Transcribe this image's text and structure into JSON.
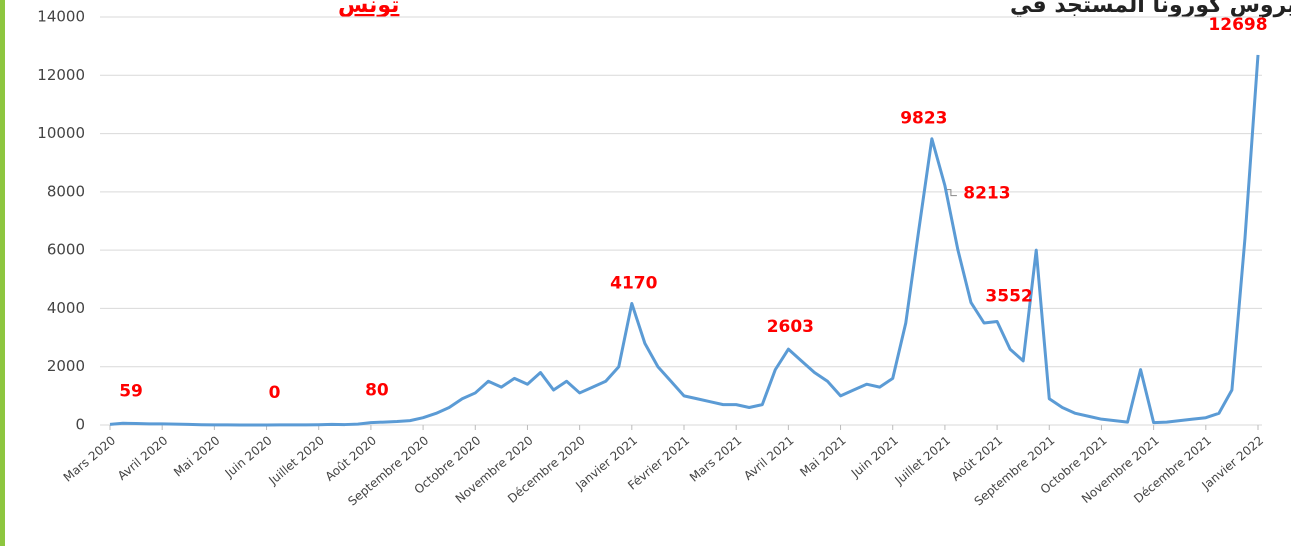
{
  "chart_data": {
    "type": "line",
    "title": "حالات الإصابة اليومية بفيروس كورونا المستجد في",
    "title_highlight": "تونس",
    "x": [
      0,
      0.25,
      0.5,
      0.75,
      1,
      1.25,
      1.5,
      1.75,
      2,
      2.25,
      2.5,
      2.75,
      3,
      3.25,
      3.5,
      3.75,
      4,
      4.25,
      4.5,
      4.75,
      5,
      5.25,
      5.5,
      5.75,
      6,
      6.25,
      6.5,
      6.75,
      7,
      7.25,
      7.5,
      7.75,
      8,
      8.25,
      8.5,
      8.75,
      9,
      9.25,
      9.5,
      9.75,
      10,
      10.25,
      10.5,
      10.75,
      11,
      11.25,
      11.5,
      11.75,
      12,
      12.25,
      12.5,
      12.75,
      13,
      13.25,
      13.5,
      13.75,
      14,
      14.25,
      14.5,
      14.75,
      15,
      15.25,
      15.5,
      15.75,
      16,
      16.25,
      16.5,
      16.75,
      17,
      17.25,
      17.5,
      17.75,
      18,
      18.25,
      18.5,
      18.75,
      19,
      19.25,
      19.5,
      19.75,
      20,
      20.25,
      20.5,
      20.75,
      21,
      21.25,
      21.5,
      21.75,
      22
    ],
    "series": [
      {
        "color": "#5b9bd5",
        "values": [
          20,
          59,
          50,
          40,
          40,
          30,
          20,
          10,
          5,
          3,
          2,
          1,
          0,
          3,
          5,
          5,
          10,
          20,
          15,
          30,
          80,
          100,
          120,
          150,
          250,
          400,
          600,
          900,
          1100,
          1500,
          1300,
          1600,
          1400,
          1800,
          1200,
          1500,
          1100,
          1300,
          1500,
          2000,
          4170,
          2800,
          2000,
          1500,
          1000,
          900,
          800,
          700,
          700,
          600,
          700,
          1900,
          2603,
          2200,
          1800,
          1500,
          1000,
          1200,
          1400,
          1300,
          1600,
          3500,
          6700,
          9823,
          8213,
          6000,
          4200,
          3500,
          3552,
          2600,
          2200,
          6000,
          900,
          600,
          400,
          300,
          200,
          150,
          100,
          1900,
          80,
          100,
          150,
          200,
          250,
          400,
          1200,
          6400,
          12698
        ]
      }
    ],
    "annotations": [
      {
        "x": 0.25,
        "value": 59
      },
      {
        "x": 3,
        "value": 0
      },
      {
        "x": 5,
        "value": 80
      },
      {
        "x": 10,
        "value": 4170
      },
      {
        "x": 13,
        "value": 2603
      },
      {
        "x": 15.75,
        "value": 9823
      },
      {
        "x": 16,
        "value": 8213
      },
      {
        "x": 17,
        "value": 3552
      },
      {
        "x": 22,
        "value": 12698
      }
    ],
    "xlim": [
      0,
      22
    ],
    "xticks": [
      {
        "value": 0,
        "label": "Mars 2020"
      },
      {
        "value": 1,
        "label": "Avril 2020"
      },
      {
        "value": 2,
        "label": "Mai 2020"
      },
      {
        "value": 3,
        "label": "Juin 2020"
      },
      {
        "value": 4,
        "label": "Juillet 2020"
      },
      {
        "value": 5,
        "label": "Août 2020"
      },
      {
        "value": 6,
        "label": "Septembre 2020"
      },
      {
        "value": 7,
        "label": "Octobre 2020"
      },
      {
        "value": 8,
        "label": "Novembre 2020"
      },
      {
        "value": 9,
        "label": "Décembre 2020"
      },
      {
        "value": 10,
        "label": "Janvier 2021"
      },
      {
        "value": 11,
        "label": "Février 2021"
      },
      {
        "value": 12,
        "label": "Mars 2021"
      },
      {
        "value": 13,
        "label": "Avril 2021"
      },
      {
        "value": 14,
        "label": "Mai 2021"
      },
      {
        "value": 15,
        "label": "Juin 2021"
      },
      {
        "value": 16,
        "label": "Juillet 2021"
      },
      {
        "value": 17,
        "label": "Août 2021"
      },
      {
        "value": 18,
        "label": "Septembre 2021"
      },
      {
        "value": 19,
        "label": "Octobre 2021"
      },
      {
        "value": 20,
        "label": "Novembre 2021"
      },
      {
        "value": 21,
        "label": "Décembre 2021"
      },
      {
        "value": 22,
        "label": "Janvier 2022"
      }
    ],
    "ylim": [
      0,
      14000
    ],
    "yticks": [
      0,
      2000,
      4000,
      6000,
      8000,
      10000,
      12000,
      14000
    ],
    "grid": true
  }
}
